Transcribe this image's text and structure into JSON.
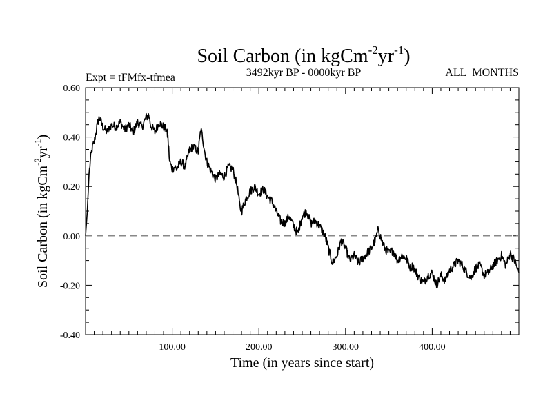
{
  "chart_data": {
    "type": "line",
    "title": {
      "main": "Soil Carbon (in kgCm",
      "sup1": "-2",
      "mid": "yr",
      "sup2": "-1",
      "end": ")"
    },
    "subtitle_left": "Expt = tFMfx-tfmea",
    "subtitle_center": "3492kyr BP - 0000kyr BP",
    "subtitle_right": "ALL_MONTHS",
    "xlabel": "Time (in years since start)",
    "ylabel": {
      "main": "Soil Carbon (in kgCm",
      "sup1": "-2",
      "mid": "yr",
      "sup2": "-1",
      "end": ")"
    },
    "xlim": [
      0,
      500
    ],
    "ylim": [
      -0.4,
      0.6
    ],
    "x_ticks": [
      100,
      200,
      300,
      400
    ],
    "x_tick_labels": [
      "100.00",
      "200.00",
      "300.00",
      "400.00"
    ],
    "y_ticks": [
      -0.4,
      -0.2,
      0.0,
      0.2,
      0.4,
      0.6
    ],
    "y_tick_labels": [
      "-0.40",
      "-0.20",
      "0.00",
      "0.20",
      "0.40",
      "0.60"
    ],
    "reference_line": {
      "y": 0.0,
      "style": "dashed",
      "color": "#888888"
    },
    "line_color": "#000000",
    "series": [
      {
        "name": "Soil Carbon",
        "x": [
          0,
          2,
          4,
          6,
          8,
          10,
          12,
          14,
          16,
          20,
          25,
          30,
          35,
          40,
          45,
          50,
          55,
          60,
          65,
          70,
          73,
          75,
          80,
          85,
          90,
          93,
          95,
          97,
          100,
          103,
          105,
          110,
          115,
          120,
          125,
          130,
          133,
          135,
          138,
          140,
          145,
          150,
          155,
          160,
          165,
          170,
          175,
          178,
          180,
          185,
          190,
          195,
          200,
          205,
          210,
          215,
          220,
          225,
          230,
          235,
          240,
          245,
          250,
          255,
          260,
          265,
          270,
          275,
          278,
          280,
          285,
          290,
          295,
          300,
          305,
          310,
          315,
          320,
          325,
          330,
          335,
          338,
          340,
          345,
          350,
          355,
          360,
          365,
          370,
          375,
          378,
          380,
          385,
          390,
          395,
          400,
          405,
          410,
          415,
          420,
          425,
          430,
          435,
          440,
          445,
          450,
          455,
          460,
          465,
          470,
          475,
          480,
          485,
          490,
          495,
          500
        ],
        "y": [
          0.0,
          0.1,
          0.25,
          0.32,
          0.36,
          0.38,
          0.42,
          0.46,
          0.48,
          0.44,
          0.42,
          0.45,
          0.44,
          0.46,
          0.43,
          0.45,
          0.42,
          0.46,
          0.44,
          0.48,
          0.49,
          0.45,
          0.42,
          0.46,
          0.44,
          0.43,
          0.4,
          0.3,
          0.27,
          0.28,
          0.27,
          0.3,
          0.28,
          0.35,
          0.36,
          0.34,
          0.43,
          0.4,
          0.33,
          0.3,
          0.26,
          0.23,
          0.25,
          0.24,
          0.28,
          0.27,
          0.2,
          0.12,
          0.1,
          0.15,
          0.18,
          0.2,
          0.17,
          0.19,
          0.16,
          0.14,
          0.1,
          0.06,
          0.05,
          0.08,
          0.04,
          0.01,
          0.08,
          0.1,
          0.05,
          0.06,
          0.04,
          0.01,
          -0.02,
          -0.05,
          -0.11,
          -0.08,
          -0.02,
          -0.05,
          -0.1,
          -0.08,
          -0.11,
          -0.09,
          -0.07,
          -0.05,
          -0.01,
          0.03,
          0.0,
          -0.05,
          -0.07,
          -0.06,
          -0.1,
          -0.08,
          -0.09,
          -0.13,
          -0.12,
          -0.14,
          -0.17,
          -0.19,
          -0.16,
          -0.15,
          -0.2,
          -0.16,
          -0.18,
          -0.14,
          -0.12,
          -0.1,
          -0.12,
          -0.15,
          -0.17,
          -0.13,
          -0.12,
          -0.16,
          -0.15,
          -0.12,
          -0.1,
          -0.08,
          -0.12,
          -0.07,
          -0.1,
          -0.15
        ]
      }
    ]
  }
}
